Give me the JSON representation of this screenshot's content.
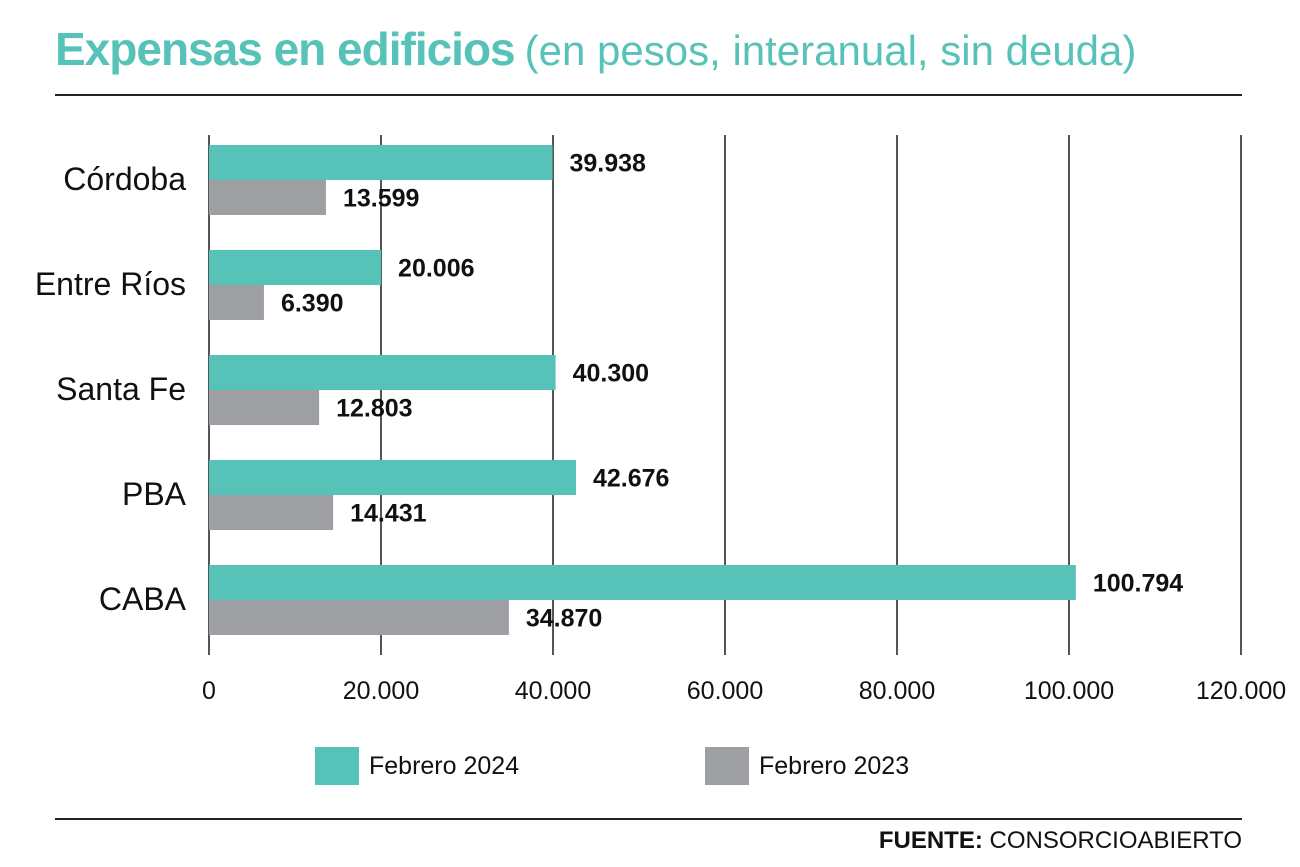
{
  "title": "Expensas en edificios",
  "subtitle": "(en pesos, interanual, sin deuda)",
  "source_label": "FUENTE:",
  "source_value": "CONSORCIOABIERTO",
  "colors": {
    "accent": "#56c2b8",
    "series_2024": "#56c2b8",
    "series_2023": "#9d9fa2",
    "grid": "#555555"
  },
  "chart_data": {
    "type": "bar",
    "orientation": "horizontal",
    "categories": [
      "Córdoba",
      "Entre Ríos",
      "Santa Fe",
      "PBA",
      "CABA"
    ],
    "series": [
      {
        "name": "Febrero 2024",
        "values": [
          39938,
          20006,
          40300,
          42676,
          100794
        ],
        "labels": [
          "39.938",
          "20.006",
          "40.300",
          "42.676",
          "100.794"
        ]
      },
      {
        "name": "Febrero 2023",
        "values": [
          13599,
          6390,
          12803,
          14431,
          34870
        ],
        "labels": [
          "13.599",
          "6.390",
          "12.803",
          "14.431",
          "34.870"
        ]
      }
    ],
    "xlim": [
      0,
      120000
    ],
    "xticks": [
      0,
      20000,
      40000,
      60000,
      80000,
      100000,
      120000
    ],
    "xtick_labels": [
      "0",
      "20.000",
      "40.000",
      "60.000",
      "80.000",
      "100.000",
      "120.000"
    ],
    "grid": true,
    "legend_position": "bottom"
  }
}
